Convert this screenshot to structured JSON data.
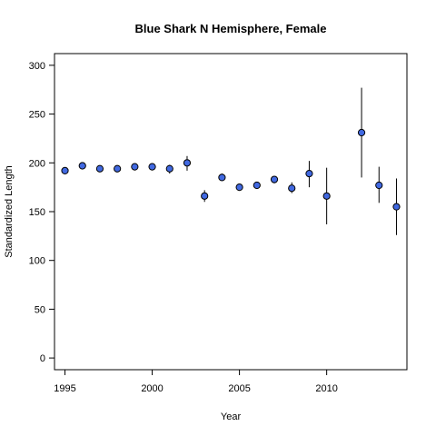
{
  "chart_data": {
    "type": "scatter",
    "title": "Blue Shark N Hemisphere,  Female",
    "xlabel": "Year",
    "ylabel": "Standardized Length",
    "xlim": [
      1994.4,
      2014.6
    ],
    "ylim": [
      -12,
      312
    ],
    "x_ticks": [
      1995,
      2000,
      2005,
      2010
    ],
    "y_ticks": [
      0,
      50,
      100,
      150,
      200,
      250,
      300
    ],
    "grid": false,
    "legend": "none",
    "point_color": "#4169e1",
    "series": [
      {
        "points": [
          {
            "x": 1995,
            "y": 192,
            "lo": 189,
            "hi": 195
          },
          {
            "x": 1996,
            "y": 197,
            "lo": 194,
            "hi": 200
          },
          {
            "x": 1997,
            "y": 194,
            "lo": 191,
            "hi": 197
          },
          {
            "x": 1998,
            "y": 194,
            "lo": 191,
            "hi": 197
          },
          {
            "x": 1999,
            "y": 196,
            "lo": 193,
            "hi": 199
          },
          {
            "x": 2000,
            "y": 196,
            "lo": 193,
            "hi": 199
          },
          {
            "x": 2001,
            "y": 194,
            "lo": 189,
            "hi": 198
          },
          {
            "x": 2002,
            "y": 200,
            "lo": 192,
            "hi": 207
          },
          {
            "x": 2003,
            "y": 166,
            "lo": 160,
            "hi": 172
          },
          {
            "x": 2004,
            "y": 185,
            "lo": 182,
            "hi": 189
          },
          {
            "x": 2005,
            "y": 175,
            "lo": 172,
            "hi": 178
          },
          {
            "x": 2006,
            "y": 177,
            "lo": 174,
            "hi": 180
          },
          {
            "x": 2007,
            "y": 183,
            "lo": 179,
            "hi": 186
          },
          {
            "x": 2008,
            "y": 174,
            "lo": 169,
            "hi": 180
          },
          {
            "x": 2009,
            "y": 189,
            "lo": 175,
            "hi": 202
          },
          {
            "x": 2010,
            "y": 166,
            "lo": 137,
            "hi": 195
          },
          {
            "x": 2012,
            "y": 231,
            "lo": 185,
            "hi": 277
          },
          {
            "x": 2013,
            "y": 177,
            "lo": 159,
            "hi": 196
          },
          {
            "x": 2014,
            "y": 155,
            "lo": 126,
            "hi": 184
          }
        ]
      }
    ]
  }
}
